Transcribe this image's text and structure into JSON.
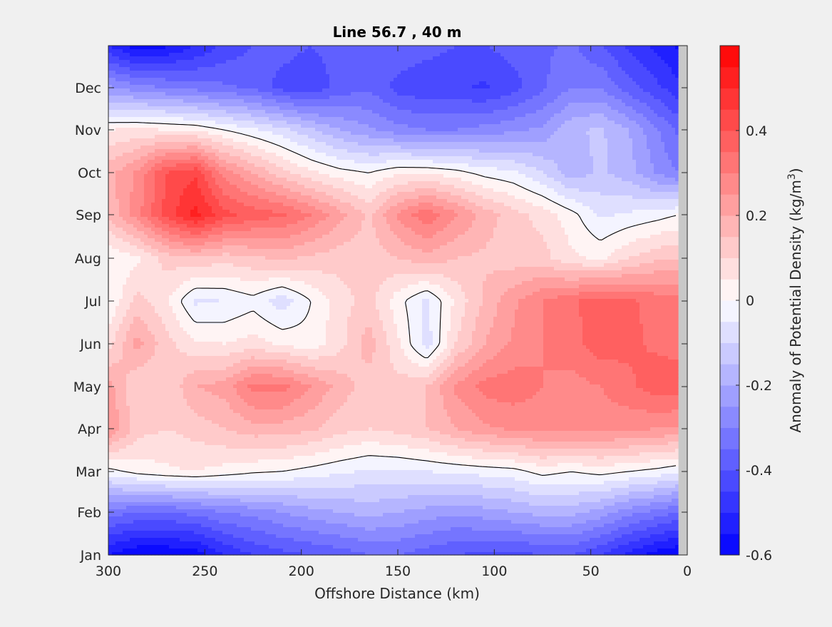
{
  "chart_data": {
    "type": "heatmap",
    "subtype": "filled-contour",
    "title": "Line 56.7 , 40 m",
    "xlabel": "Offshore Distance (km)",
    "ylabel": "",
    "x_reversed": true,
    "xlim": [
      300,
      0
    ],
    "x_ticks": [
      300,
      250,
      200,
      150,
      100,
      50,
      0
    ],
    "y_tick_labels": [
      "Jan",
      "Feb",
      "Mar",
      "Apr",
      "May",
      "Jun",
      "Jul",
      "Aug",
      "Sep",
      "Oct",
      "Nov",
      "Dec"
    ],
    "colorbar": {
      "label_prefix": "Anomaly of Potential Density (kg/m",
      "label_sup": "3",
      "label_suffix": ")",
      "range": [
        -0.6,
        0.6
      ],
      "levels": 24,
      "ticks": [
        -0.6,
        -0.4,
        -0.2,
        0,
        0.2,
        0.4
      ],
      "colormap": "blue-white-red"
    },
    "zero_contour": true,
    "grid": false,
    "x": [
      300,
      285,
      270,
      255,
      240,
      225,
      210,
      195,
      180,
      165,
      150,
      135,
      120,
      105,
      90,
      75,
      60,
      45,
      30,
      15,
      5
    ],
    "y": [
      "Jan",
      "Feb",
      "Mar",
      "Apr",
      "May",
      "Jun",
      "Jul",
      "Aug",
      "Sep",
      "Oct",
      "Nov",
      "Dec",
      "Dec end"
    ],
    "z": [
      [
        -0.55,
        -0.6,
        -0.6,
        -0.58,
        -0.5,
        -0.45,
        -0.42,
        -0.4,
        -0.38,
        -0.35,
        -0.35,
        -0.38,
        -0.4,
        -0.42,
        -0.42,
        -0.4,
        -0.4,
        -0.45,
        -0.52,
        -0.58,
        -0.6
      ],
      [
        -0.32,
        -0.35,
        -0.35,
        -0.33,
        -0.3,
        -0.28,
        -0.25,
        -0.22,
        -0.2,
        -0.18,
        -0.2,
        -0.22,
        -0.24,
        -0.22,
        -0.2,
        -0.18,
        -0.18,
        -0.22,
        -0.28,
        -0.32,
        -0.35
      ],
      [
        -0.02,
        0.02,
        0.04,
        0.05,
        0.03,
        0.01,
        0.0,
        -0.02,
        -0.04,
        -0.06,
        -0.06,
        -0.05,
        -0.04,
        -0.03,
        -0.02,
        0.02,
        0.0,
        0.02,
        0.0,
        -0.02,
        -0.04
      ],
      [
        0.26,
        0.12,
        0.1,
        0.12,
        0.15,
        0.18,
        0.18,
        0.16,
        0.12,
        0.1,
        0.12,
        0.15,
        0.2,
        0.24,
        0.26,
        0.27,
        0.27,
        0.27,
        0.26,
        0.25,
        0.24
      ],
      [
        0.22,
        0.1,
        0.1,
        0.2,
        0.22,
        0.32,
        0.32,
        0.25,
        0.18,
        0.12,
        0.12,
        0.15,
        0.26,
        0.32,
        0.33,
        0.3,
        0.28,
        0.3,
        0.34,
        0.38,
        0.38
      ],
      [
        0.08,
        0.22,
        0.12,
        0.06,
        0.05,
        0.07,
        0.04,
        0.02,
        0.08,
        0.18,
        0.06,
        -0.08,
        0.1,
        0.2,
        0.26,
        0.3,
        0.33,
        0.38,
        0.36,
        0.34,
        0.33
      ],
      [
        0.0,
        0.12,
        0.06,
        -0.06,
        -0.05,
        -0.02,
        -0.08,
        0.0,
        0.08,
        0.12,
        0.02,
        -0.06,
        0.06,
        0.16,
        0.24,
        0.3,
        0.34,
        0.38,
        0.36,
        0.33,
        0.32
      ],
      [
        0.0,
        0.04,
        0.12,
        0.14,
        0.12,
        0.14,
        0.16,
        0.14,
        0.12,
        0.12,
        0.15,
        0.18,
        0.15,
        0.14,
        0.12,
        0.12,
        0.06,
        0.04,
        0.1,
        0.14,
        0.15
      ],
      [
        0.16,
        0.28,
        0.42,
        0.52,
        0.42,
        0.38,
        0.36,
        0.3,
        0.22,
        0.14,
        0.26,
        0.34,
        0.26,
        0.18,
        0.12,
        0.08,
        0.02,
        -0.06,
        -0.04,
        -0.02,
        0.0
      ],
      [
        0.18,
        0.26,
        0.4,
        0.44,
        0.28,
        0.2,
        0.12,
        0.06,
        0.02,
        0.0,
        0.04,
        0.04,
        0.02,
        -0.02,
        -0.04,
        -0.1,
        -0.18,
        -0.14,
        -0.18,
        -0.26,
        -0.3
      ],
      [
        0.05,
        0.06,
        0.05,
        0.04,
        0.0,
        -0.04,
        -0.08,
        -0.14,
        -0.2,
        -0.24,
        -0.28,
        -0.3,
        -0.3,
        -0.28,
        -0.26,
        -0.24,
        -0.16,
        -0.14,
        -0.2,
        -0.3,
        -0.36
      ],
      [
        -0.24,
        -0.28,
        -0.3,
        -0.32,
        -0.34,
        -0.36,
        -0.42,
        -0.44,
        -0.38,
        -0.36,
        -0.42,
        -0.44,
        -0.44,
        -0.46,
        -0.42,
        -0.36,
        -0.3,
        -0.3,
        -0.38,
        -0.44,
        -0.48
      ],
      [
        -0.5,
        -0.58,
        -0.56,
        -0.5,
        -0.44,
        -0.4,
        -0.38,
        -0.4,
        -0.38,
        -0.36,
        -0.36,
        -0.38,
        -0.4,
        -0.4,
        -0.38,
        -0.36,
        -0.34,
        -0.4,
        -0.46,
        -0.52,
        -0.56
      ]
    ]
  }
}
